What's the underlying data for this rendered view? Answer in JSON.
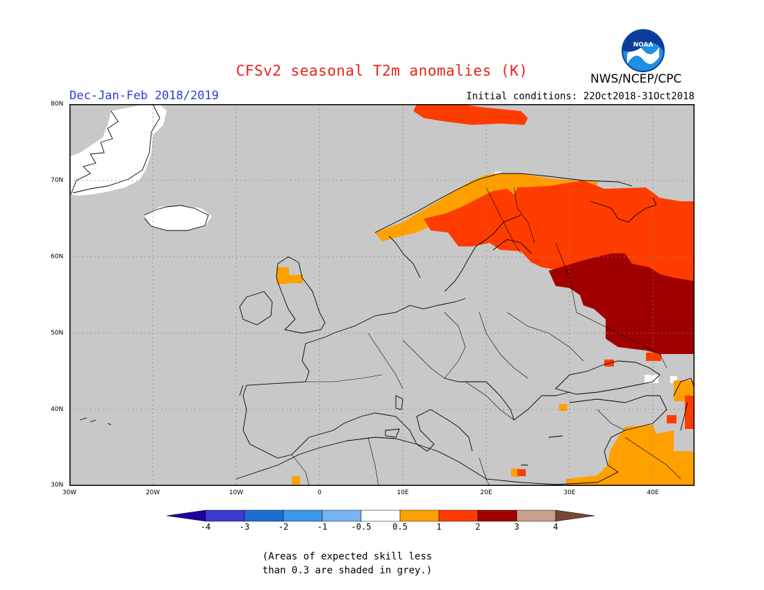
{
  "header": {
    "title": "CFSv2 seasonal T2m anomalies (K)",
    "season": "Dec-Jan-Feb 2018/2019",
    "initial_conditions": "Initial conditions: 22Oct2018-31Oct2018",
    "agency": "NWS/NCEP/CPC",
    "logo_text": "NOAA"
  },
  "map": {
    "region": "Europe",
    "lat_range": [
      30,
      80
    ],
    "lon_range": [
      -30,
      45
    ],
    "lat_labels": [
      "80N",
      "70N",
      "60N",
      "50N",
      "40N",
      "30N"
    ],
    "lon_labels": [
      "30W",
      "20W",
      "10W",
      "0",
      "10E",
      "20E",
      "30E",
      "40E"
    ],
    "background_color": "#c8c8c8",
    "anomaly_classes": [
      {
        "range": "0.5-1",
        "color": "#ffa000"
      },
      {
        "range": "1-2",
        "color": "#ff3c00"
      },
      {
        "range": "2-3",
        "color": "#a00000"
      }
    ]
  },
  "colorbar": {
    "labels": [
      "-4",
      "-3",
      "-2",
      "-1",
      "-0.5",
      "0.5",
      "1",
      "2",
      "3",
      "4"
    ],
    "colors": [
      "#1e00a0",
      "#3c3cd2",
      "#1e6ed2",
      "#3c96f0",
      "#78b4f0",
      "#ffffff",
      "#ffa000",
      "#ff3c00",
      "#a00000",
      "#c8a08c",
      "#784632"
    ]
  },
  "footnote": {
    "line1": "(Areas of expected skill less",
    "line2": "than 0.3 are shaded in grey.)"
  }
}
